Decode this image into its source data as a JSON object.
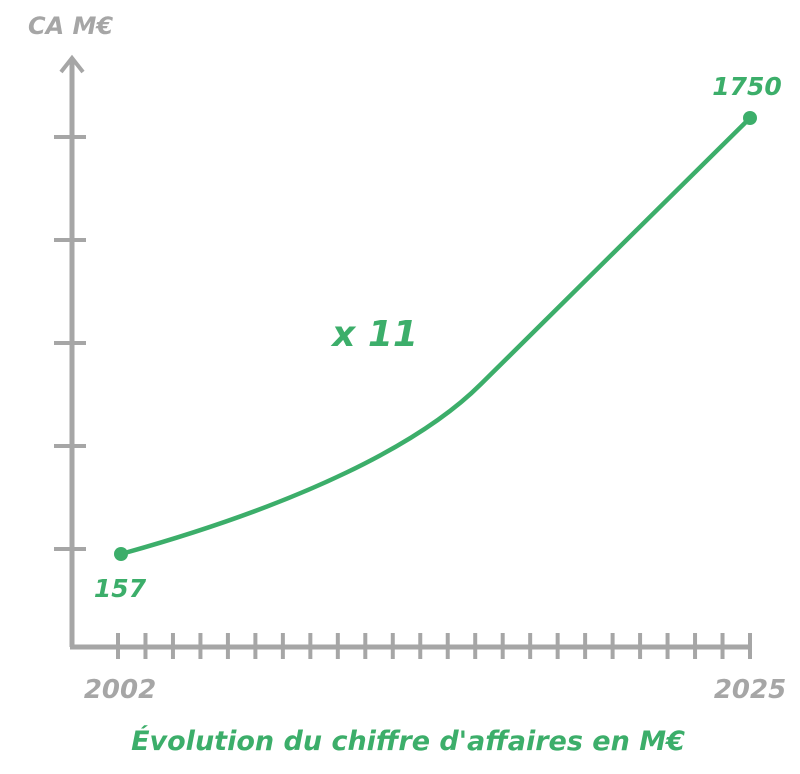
{
  "chart_data": {
    "type": "line",
    "ylabel": "CA M€",
    "title": "Évolution du chiffre d'affaires en M€",
    "x_tick_labels": [
      "2002",
      "2025"
    ],
    "x_range": [
      2002,
      2025
    ],
    "points": [
      {
        "x": 2002,
        "y": 157,
        "label": "157"
      },
      {
        "x": 2025,
        "y": 1750,
        "label": "1750"
      }
    ],
    "annotation": "x 11",
    "y_ticks_count": 5,
    "grid": false,
    "colors": {
      "line": "#3cae6a",
      "axis": "#a6a6a6"
    }
  }
}
